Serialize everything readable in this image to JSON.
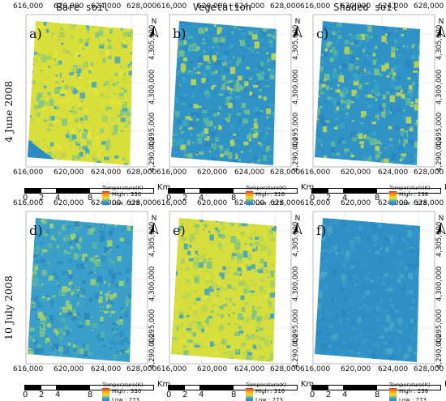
{
  "columns": [
    "Bare soil",
    "Vegetation",
    "Shaded soil"
  ],
  "rows": [
    "4 June 2008",
    "10 July 2008"
  ],
  "x_ticks": [
    "616,000",
    "620,000",
    "624,000",
    "628,000"
  ],
  "y_ticks": [
    "4,305,000",
    "4,300,000",
    "4,295,000",
    "4,290,000"
  ],
  "north_label": "N",
  "scale": {
    "labels": [
      "0",
      "2",
      "4",
      "8"
    ],
    "unit": "Km"
  },
  "legend_title": "Temperature(K)",
  "panels": [
    {
      "label": "a)",
      "high": "High : 330",
      "low": "Low : 273",
      "tone": "yellow-mixed"
    },
    {
      "label": "b)",
      "high": "High : 316",
      "low": "Low : 273",
      "tone": "blue-mixed"
    },
    {
      "label": "c)",
      "high": "High : 298",
      "low": "Low : 273",
      "tone": "blue-mixed"
    },
    {
      "label": "d)",
      "high": "High : 330",
      "low": "Low : 273",
      "tone": "blue-green"
    },
    {
      "label": "e)",
      "high": "High : 316",
      "low": "Low : 273",
      "tone": "yellow-green"
    },
    {
      "label": "f)",
      "high": "High : 298",
      "low": "Low : 273",
      "tone": "blue"
    }
  ],
  "colors": {
    "blue": "#2f93c6",
    "green": "#57b89a",
    "yellow": "#d9df3a",
    "deep": "#1f6fb0"
  }
}
